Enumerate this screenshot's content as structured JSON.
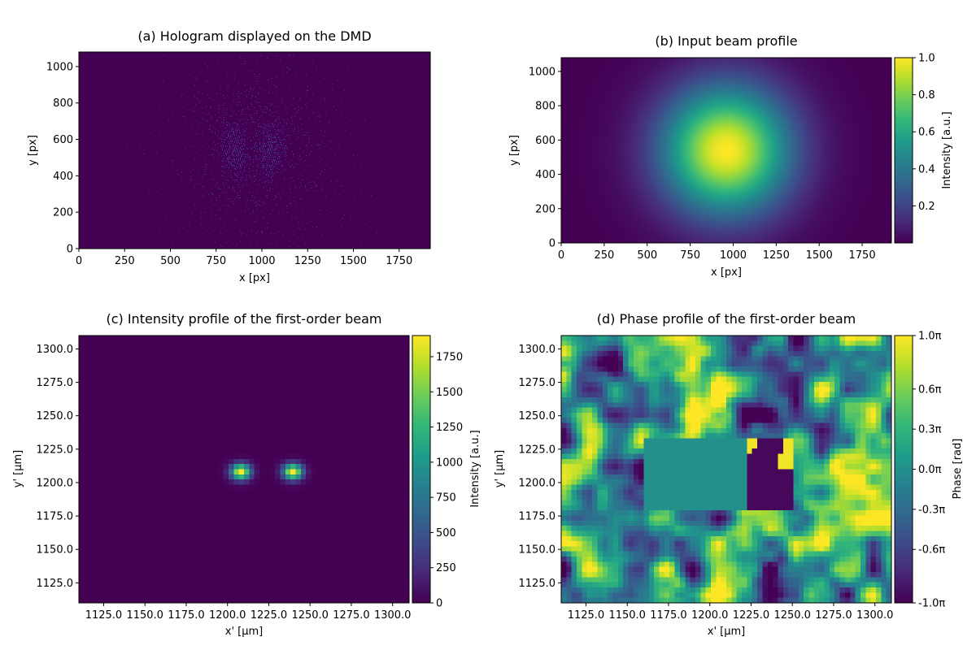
{
  "chart_data": [
    {
      "type": "heatmap",
      "title": "(a) Hologram displayed on the DMD",
      "xlabel": "x [px]",
      "ylabel": "y [px]",
      "xlim": [
        0,
        1920
      ],
      "ylim": [
        1080,
        0
      ],
      "x_ticks": [
        "0",
        "250",
        "500",
        "750",
        "1000",
        "1250",
        "1500",
        "1750"
      ],
      "y_ticks": [
        "0",
        "200",
        "400",
        "600",
        "800",
        "1000"
      ],
      "colormap": "viridis",
      "pattern": "binary fringe hologram with two vertical lobes centered near x=850 px and x=1050 px, y=540 px",
      "lobes_x": [
        850,
        1050
      ],
      "lobe_center_y": 540
    },
    {
      "type": "heatmap",
      "title": "(b) Input beam profile",
      "xlabel": "x [px]",
      "ylabel": "y [px]",
      "xlim": [
        0,
        1920
      ],
      "ylim": [
        1080,
        0
      ],
      "x_ticks": [
        "0",
        "250",
        "500",
        "750",
        "1000",
        "1250",
        "1500",
        "1750"
      ],
      "y_ticks": [
        "0",
        "200",
        "400",
        "600",
        "800",
        "1000"
      ],
      "colormap": "viridis",
      "pattern": "gaussian beam",
      "center": [
        960,
        540
      ],
      "colorbar": {
        "label": "Intensity [a.u.]",
        "ticks": [
          "0.2",
          "0.4",
          "0.6",
          "0.8",
          "1.0"
        ],
        "range": [
          0.0,
          1.0
        ]
      }
    },
    {
      "type": "heatmap",
      "title": "(c) Intensity profile of the first-order beam",
      "xlabel": "x' [µm]",
      "ylabel": "y' [µm]",
      "xlim": [
        1110,
        1310
      ],
      "ylim": [
        1110,
        1310
      ],
      "x_ticks": [
        "1125.0",
        "1150.0",
        "1175.0",
        "1200.0",
        "1225.0",
        "1250.0",
        "1275.0",
        "1300.0"
      ],
      "y_ticks": [
        "1125.0",
        "1150.0",
        "1175.0",
        "1200.0",
        "1225.0",
        "1250.0",
        "1275.0",
        "1300.0"
      ],
      "colormap": "viridis",
      "spots": [
        {
          "x": 1208,
          "y": 1208,
          "peak": 1900
        },
        {
          "x": 1240,
          "y": 1208,
          "peak": 1900
        }
      ],
      "colorbar": {
        "label": "Intensity [a.u.]",
        "ticks": [
          "0",
          "250",
          "500",
          "750",
          "1000",
          "1250",
          "1500",
          "1750"
        ],
        "range": [
          0,
          1900
        ]
      }
    },
    {
      "type": "heatmap",
      "title": "(d) Phase profile of the first-order beam",
      "xlabel": "x' [µm]",
      "ylabel": "y' [µm]",
      "xlim": [
        1110,
        1310
      ],
      "ylim": [
        1110,
        1310
      ],
      "x_ticks": [
        "1125.0",
        "1150.0",
        "1175.0",
        "1200.0",
        "1225.0",
        "1250.0",
        "1275.0",
        "1300.0"
      ],
      "y_ticks": [
        "1125.0",
        "1150.0",
        "1175.0",
        "1200.0",
        "1225.0",
        "1250.0",
        "1275.0",
        "1300.0"
      ],
      "colormap": "viridis",
      "pattern": "noisy phase map with uniform phase (~0) in the central beam region and a pi phase jump on the right lobe",
      "colorbar": {
        "label": "Phase [rad]",
        "ticks": [
          "-1.0π",
          "-0.6π",
          "-0.3π",
          "0.0π",
          "0.3π",
          "0.6π",
          "1.0π"
        ],
        "range": [
          -3.14159,
          3.14159
        ]
      }
    }
  ]
}
